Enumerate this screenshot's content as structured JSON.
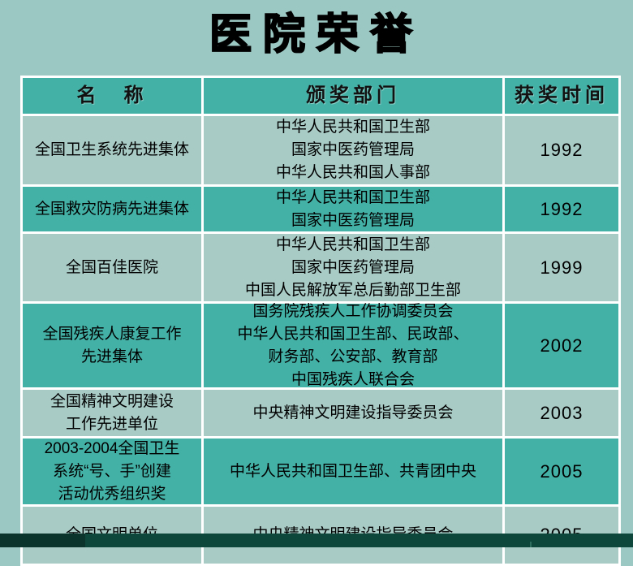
{
  "title": "医院荣誉",
  "colors": {
    "page_background": "#9cc8c3",
    "teal_row": "#44b1a6",
    "light_row": "#a9cbc6",
    "grid_line": "#ffffff",
    "bottom_bar": "#0d463b",
    "text": "#000000"
  },
  "table": {
    "headers": {
      "name": "名　称",
      "department": "颁奖部门",
      "time": "获奖时间"
    },
    "rows": [
      {
        "name": "全国卫生系统先进集体",
        "department": "中华人民共和国卫生部\n国家中医药管理局\n中华人民共和国人事部",
        "year": "1992"
      },
      {
        "name": "全国救灾防病先进集体",
        "department": "中华人民共和国卫生部\n国家中医药管理局",
        "year": "1992"
      },
      {
        "name": "全国百佳医院",
        "department": "中华人民共和国卫生部\n国家中医药管理局\n中国人民解放军总后勤部卫生部",
        "year": "1999"
      },
      {
        "name": "全国残疾人康复工作\n先进集体",
        "department": "国务院残疾人工作协调委员会\n中华人民共和国卫生部、民政部、\n财务部、公安部、教育部\n中国残疾人联合会",
        "year": "2002"
      },
      {
        "name": "全国精神文明建设\n工作先进单位",
        "department": "中央精神文明建设指导委员会",
        "year": "2003"
      },
      {
        "name": "2003-2004全国卫生\n系统“号、手”创建\n活动优秀组织奖",
        "department": "中华人民共和国卫生部、共青团中央",
        "year": "2005"
      },
      {
        "name": "全国文明单位",
        "department": "中央精神文明建设指导委员会",
        "year": "2005"
      }
    ]
  }
}
